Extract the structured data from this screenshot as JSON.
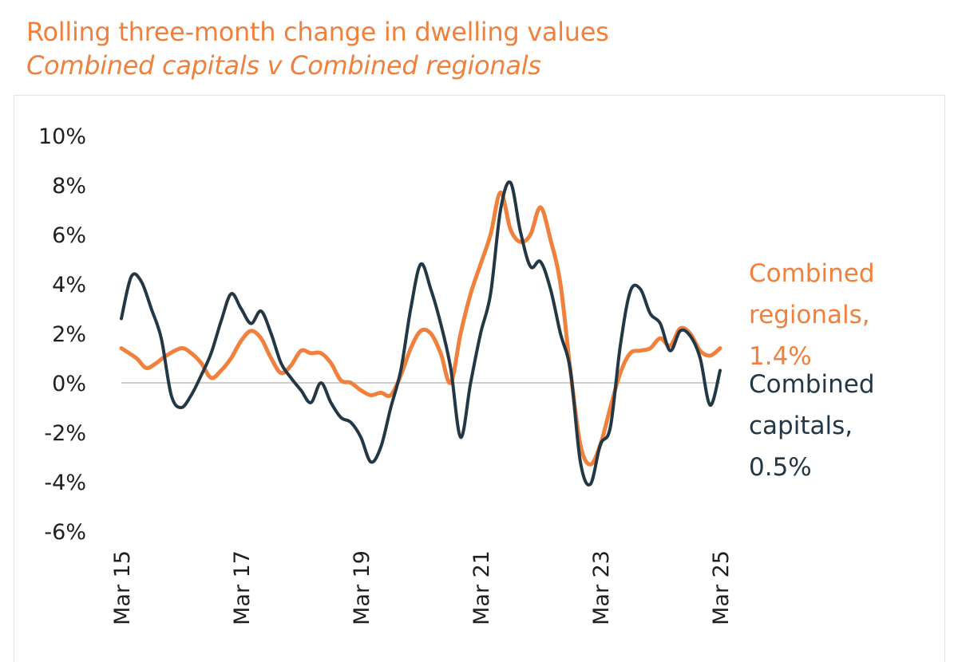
{
  "title": "Rolling three-month change in dwelling values",
  "subtitle": "Combined capitals v Combined regionals",
  "colors": {
    "regionals": "#f0803c",
    "capitals": "#233744",
    "zero_line": "#cfcfcf",
    "text": "#1f1f1f"
  },
  "chart_data": {
    "type": "line",
    "title": "Rolling three-month change in dwelling values",
    "subtitle": "Combined capitals v Combined regionals",
    "ylim": [
      -6,
      10
    ],
    "yticks": [
      10,
      8,
      6,
      4,
      2,
      0,
      -2,
      -4,
      -6
    ],
    "ytick_labels": [
      "10%",
      "8%",
      "6%",
      "4%",
      "2%",
      "0%",
      "-2%",
      "-4%",
      "-6%"
    ],
    "xlim": [
      "2015-03",
      "2025-03"
    ],
    "xticks": [
      "2015-03",
      "2017-03",
      "2019-03",
      "2021-03",
      "2023-03",
      "2025-03"
    ],
    "xtick_labels": [
      "Mar 15",
      "Mar 17",
      "Mar 19",
      "Mar 21",
      "Mar 23",
      "Mar 25"
    ],
    "grid": false,
    "series": [
      {
        "name": "Combined regionals",
        "end_label": [
          "Combined",
          "regionals,",
          "1.4%"
        ],
        "points": [
          [
            "2015-03",
            1.4
          ],
          [
            "2015-06",
            1.0
          ],
          [
            "2015-08",
            0.6
          ],
          [
            "2015-10",
            0.8
          ],
          [
            "2015-12",
            1.1
          ],
          [
            "2016-03",
            1.4
          ],
          [
            "2016-05",
            1.2
          ],
          [
            "2016-07",
            0.8
          ],
          [
            "2016-09",
            0.2
          ],
          [
            "2016-11",
            0.5
          ],
          [
            "2017-01",
            1.0
          ],
          [
            "2017-03",
            1.7
          ],
          [
            "2017-05",
            2.1
          ],
          [
            "2017-07",
            1.8
          ],
          [
            "2017-09",
            1.0
          ],
          [
            "2017-11",
            0.4
          ],
          [
            "2018-01",
            0.7
          ],
          [
            "2018-03",
            1.3
          ],
          [
            "2018-05",
            1.2
          ],
          [
            "2018-07",
            1.2
          ],
          [
            "2018-09",
            0.8
          ],
          [
            "2018-11",
            0.1
          ],
          [
            "2019-01",
            0.0
          ],
          [
            "2019-03",
            -0.3
          ],
          [
            "2019-05",
            -0.5
          ],
          [
            "2019-07",
            -0.4
          ],
          [
            "2019-09",
            -0.5
          ],
          [
            "2019-11",
            0.3
          ],
          [
            "2020-01",
            1.4
          ],
          [
            "2020-03",
            2.1
          ],
          [
            "2020-05",
            2.0
          ],
          [
            "2020-07",
            1.2
          ],
          [
            "2020-09",
            0.0
          ],
          [
            "2020-11",
            2.0
          ],
          [
            "2021-01",
            3.6
          ],
          [
            "2021-03",
            4.8
          ],
          [
            "2021-05",
            6.0
          ],
          [
            "2021-07",
            7.7
          ],
          [
            "2021-09",
            6.2
          ],
          [
            "2021-11",
            5.7
          ],
          [
            "2022-01",
            6.0
          ],
          [
            "2022-03",
            7.1
          ],
          [
            "2022-05",
            5.8
          ],
          [
            "2022-07",
            4.0
          ],
          [
            "2022-09",
            0.5
          ],
          [
            "2022-11",
            -2.5
          ],
          [
            "2023-01",
            -3.3
          ],
          [
            "2023-03",
            -2.5
          ],
          [
            "2023-05",
            -1.0
          ],
          [
            "2023-07",
            0.4
          ],
          [
            "2023-09",
            1.2
          ],
          [
            "2023-11",
            1.3
          ],
          [
            "2024-01",
            1.4
          ],
          [
            "2024-03",
            1.8
          ],
          [
            "2024-05",
            1.5
          ],
          [
            "2024-07",
            2.2
          ],
          [
            "2024-09",
            2.0
          ],
          [
            "2024-11",
            1.3
          ],
          [
            "2025-01",
            1.1
          ],
          [
            "2025-03",
            1.4
          ]
        ]
      },
      {
        "name": "Combined capitals",
        "end_label": [
          "Combined",
          "capitals,",
          "0.5%"
        ],
        "points": [
          [
            "2015-03",
            2.6
          ],
          [
            "2015-05",
            4.3
          ],
          [
            "2015-07",
            4.1
          ],
          [
            "2015-09",
            3.0
          ],
          [
            "2015-11",
            1.8
          ],
          [
            "2016-01",
            -0.5
          ],
          [
            "2016-03",
            -1.0
          ],
          [
            "2016-05",
            -0.5
          ],
          [
            "2016-07",
            0.3
          ],
          [
            "2016-09",
            1.2
          ],
          [
            "2016-11",
            2.5
          ],
          [
            "2017-01",
            3.6
          ],
          [
            "2017-03",
            3.0
          ],
          [
            "2017-05",
            2.4
          ],
          [
            "2017-07",
            2.9
          ],
          [
            "2017-09",
            2.0
          ],
          [
            "2017-11",
            0.8
          ],
          [
            "2018-01",
            0.2
          ],
          [
            "2018-03",
            -0.3
          ],
          [
            "2018-05",
            -0.8
          ],
          [
            "2018-07",
            0.0
          ],
          [
            "2018-09",
            -0.8
          ],
          [
            "2018-11",
            -1.4
          ],
          [
            "2019-01",
            -1.6
          ],
          [
            "2019-03",
            -2.2
          ],
          [
            "2019-05",
            -3.2
          ],
          [
            "2019-07",
            -2.6
          ],
          [
            "2019-09",
            -1.0
          ],
          [
            "2019-11",
            0.5
          ],
          [
            "2020-01",
            3.0
          ],
          [
            "2020-03",
            4.8
          ],
          [
            "2020-05",
            3.8
          ],
          [
            "2020-07",
            2.4
          ],
          [
            "2020-09",
            0.6
          ],
          [
            "2020-11",
            -2.2
          ],
          [
            "2021-01",
            0.0
          ],
          [
            "2021-03",
            2.0
          ],
          [
            "2021-05",
            3.6
          ],
          [
            "2021-07",
            7.0
          ],
          [
            "2021-09",
            8.1
          ],
          [
            "2021-11",
            6.1
          ],
          [
            "2022-01",
            4.7
          ],
          [
            "2022-03",
            4.9
          ],
          [
            "2022-05",
            3.8
          ],
          [
            "2022-07",
            2.0
          ],
          [
            "2022-09",
            0.5
          ],
          [
            "2022-11",
            -3.2
          ],
          [
            "2023-01",
            -4.1
          ],
          [
            "2023-03",
            -2.5
          ],
          [
            "2023-05",
            -1.8
          ],
          [
            "2023-07",
            1.5
          ],
          [
            "2023-09",
            3.7
          ],
          [
            "2023-11",
            3.8
          ],
          [
            "2024-01",
            2.8
          ],
          [
            "2024-03",
            2.4
          ],
          [
            "2024-05",
            1.3
          ],
          [
            "2024-07",
            2.1
          ],
          [
            "2024-09",
            1.9
          ],
          [
            "2024-11",
            1.0
          ],
          [
            "2025-01",
            -0.9
          ],
          [
            "2025-03",
            0.5
          ]
        ]
      }
    ]
  }
}
